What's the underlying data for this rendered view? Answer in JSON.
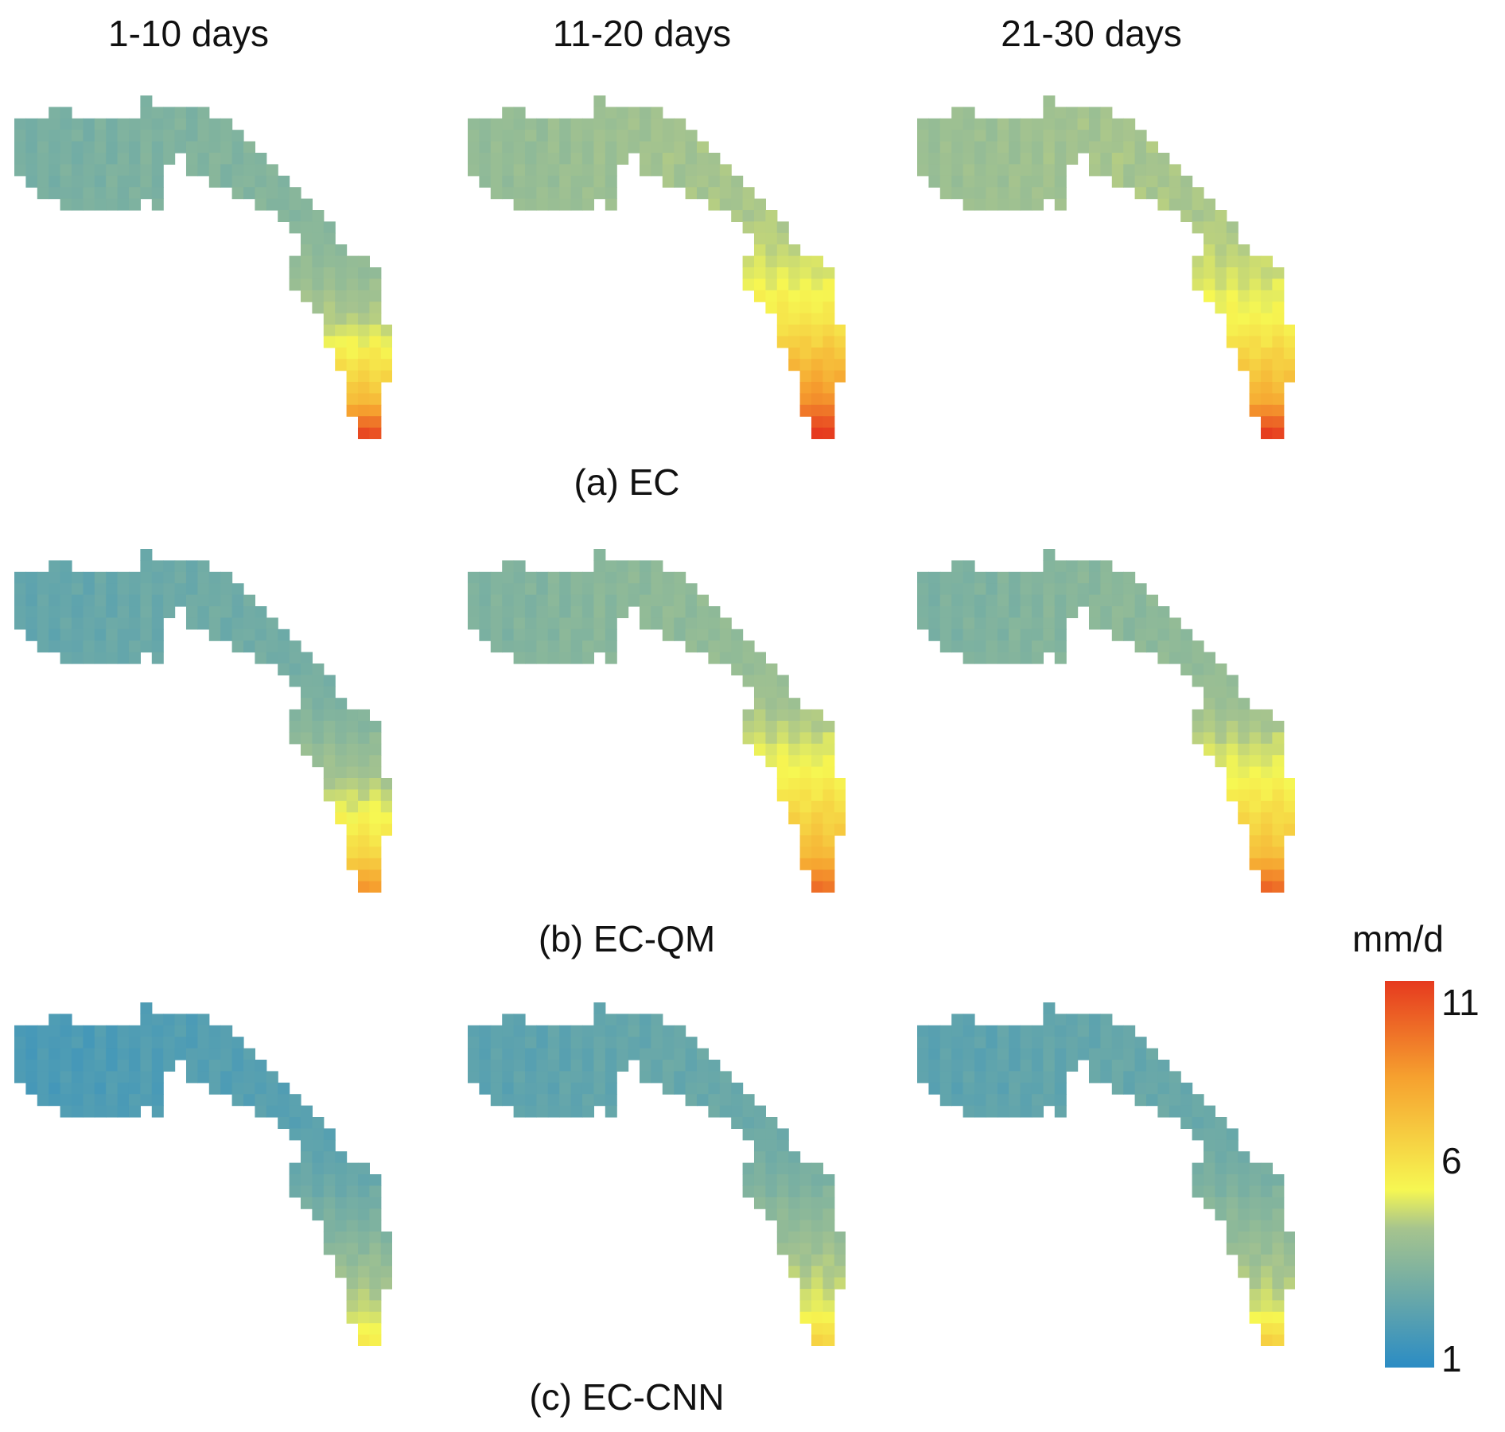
{
  "columns": [
    "1-10 days",
    "11-20 days",
    "21-30 days"
  ],
  "rows": [
    {
      "label": "(a) EC",
      "values": [
        [
          3.2,
          4.6,
          7.5,
          10.5
        ],
        [
          4.0,
          6.0,
          8.8,
          11.0
        ],
        [
          4.2,
          5.6,
          8.0,
          10.8
        ]
      ]
    },
    {
      "label": "(b) EC-QM",
      "values": [
        [
          2.6,
          4.3,
          6.6,
          8.6
        ],
        [
          3.4,
          5.6,
          7.6,
          9.6
        ],
        [
          3.3,
          5.4,
          7.4,
          9.8
        ]
      ]
    },
    {
      "label": "(c) EC-CNN",
      "values": [
        [
          1.9,
          3.3,
          4.9,
          5.9
        ],
        [
          2.4,
          3.9,
          5.3,
          6.7
        ],
        [
          2.4,
          3.8,
          5.1,
          6.8
        ]
      ]
    }
  ],
  "colorbar": {
    "unit": "mm/d",
    "ticks": [
      "11",
      "6",
      "1"
    ],
    "min": 1,
    "mid": 6,
    "max": 11,
    "colors": [
      "#2b8cc4",
      "#a6c48e",
      "#f6f752",
      "#f6a12f",
      "#e63a1f"
    ]
  }
}
